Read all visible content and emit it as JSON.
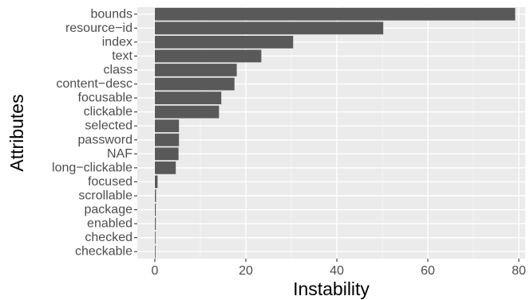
{
  "chart_data": {
    "type": "bar",
    "orientation": "horizontal",
    "xlabel": "Instability",
    "ylabel": "Attributes",
    "xlim": [
      0,
      82
    ],
    "x_ticks": [
      0,
      20,
      40,
      60,
      80
    ],
    "x_tick_labels": [
      "0",
      "20",
      "40",
      "60",
      "80"
    ],
    "grid": true,
    "legend": "none",
    "categories": [
      "bounds",
      "resource−id",
      "index",
      "text",
      "class",
      "content−desc",
      "focusable",
      "clickable",
      "selected",
      "password",
      "NAF",
      "long−clickable",
      "focused",
      "scrollable",
      "package",
      "enabled",
      "checked",
      "checkable"
    ],
    "values": [
      79.2,
      50.2,
      30.4,
      23.4,
      18.0,
      17.5,
      14.6,
      14.1,
      5.3,
      5.3,
      5.2,
      4.6,
      0.6,
      0.25,
      0.2,
      0.2,
      0.15,
      0.15
    ],
    "colors": {
      "bar": "#595959",
      "panel": "#ebebeb",
      "grid_major": "#ffffff",
      "grid_minor": "#f5f5f5",
      "tick_text": "#4d4d4d",
      "tick_mark": "#333333",
      "title_text": "#000000"
    }
  }
}
